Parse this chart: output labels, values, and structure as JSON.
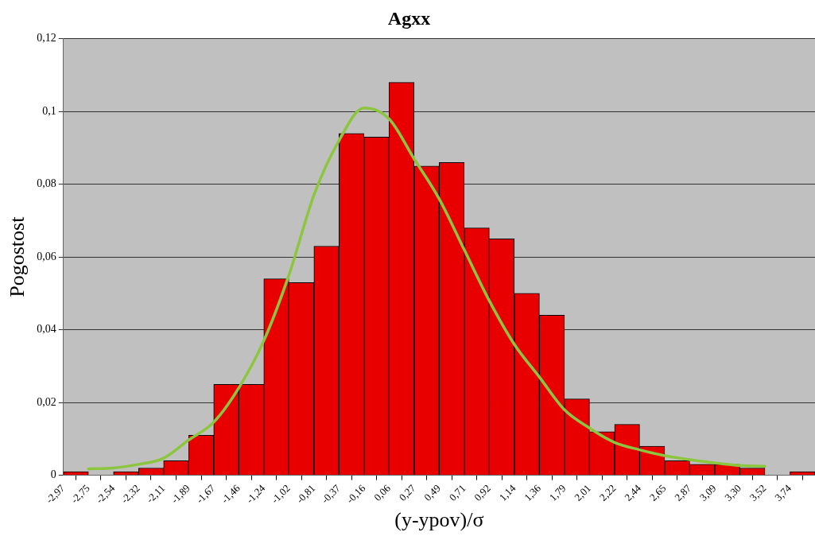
{
  "chart_data": {
    "type": "bar",
    "title": "Agxx",
    "xlabel": "(y-ypov)/σ",
    "ylabel": "Pogostost",
    "categories": [
      "-2,97",
      "-2,75",
      "-2,54",
      "-2,32",
      "-2,11",
      "-1,89",
      "-1,67",
      "-1,46",
      "-1,24",
      "-1,02",
      "-0,81",
      "-0,37",
      "-0,16",
      "0,06",
      "0,27",
      "0,49",
      "0,71",
      "0,92",
      "1,14",
      "1,36",
      "1,79",
      "2,01",
      "2,22",
      "2,44",
      "2,65",
      "2,87",
      "3,09",
      "3,30",
      "3,52",
      "3,74"
    ],
    "series": [
      {
        "color": "#e80000",
        "values": [
          0.001,
          0,
          0.001,
          0.002,
          0.004,
          0.011,
          0.025,
          0.025,
          0.054,
          0.053,
          0.063,
          0.094,
          0.093,
          0.108,
          0.085,
          0.086,
          0.068,
          0.065,
          0.05,
          0.044,
          0.021,
          0.012,
          0.014,
          0.008,
          0.004,
          0.003,
          0.003,
          0.002,
          0,
          0.001
        ]
      },
      {
        "type": "line",
        "color": "#8cc63f",
        "values": [
          null,
          0.0018,
          0.002,
          0.003,
          0.0047,
          0.0097,
          0.0146,
          0.024,
          0.037,
          0.055,
          0.077,
          0.092,
          0.101,
          0.098,
          0.087,
          0.076,
          0.062,
          0.048,
          0.036,
          0.027,
          0.018,
          0.013,
          0.009,
          0.007,
          0.0054,
          0.0043,
          0.0034,
          0.0027,
          0.0025,
          null
        ]
      }
    ],
    "ylim": [
      0,
      0.12
    ],
    "yticks": [
      {
        "value": 0,
        "label": "0"
      },
      {
        "value": 0.02,
        "label": "0,02"
      },
      {
        "value": 0.04,
        "label": "0,04"
      },
      {
        "value": 0.06,
        "label": "0,06"
      },
      {
        "value": 0.08,
        "label": "0,08"
      },
      {
        "value": 0.1,
        "label": "0,1"
      },
      {
        "value": 0.12,
        "label": "0,12"
      }
    ],
    "grid": "y",
    "legend": false,
    "marker": "none"
  }
}
